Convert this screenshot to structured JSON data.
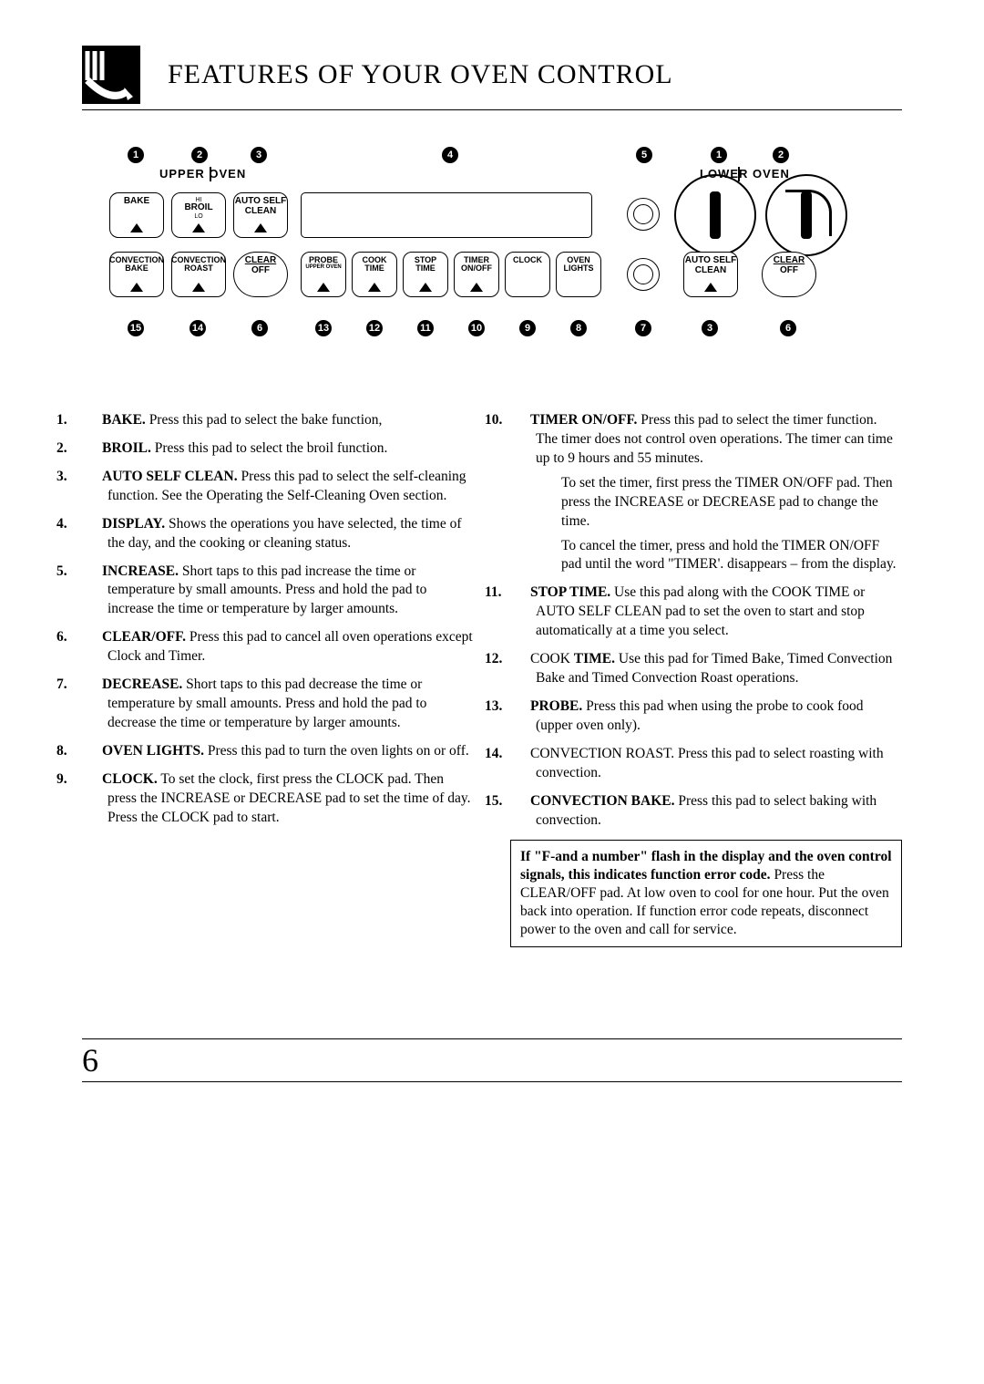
{
  "title": "FEATURES OF YOUR OVEN CONTROL",
  "page_number": "6",
  "section_labels": {
    "upper": "UPPER OVEN",
    "lower": "LOWER OVEN"
  },
  "buttons": {
    "bake": "BAKE",
    "broil": "BROIL",
    "broil_hi": "HI",
    "broil_lo": "LO",
    "auto_clean1": "AUTO SELF",
    "auto_clean2": "CLEAN",
    "conv_bake1": "CONVECTION",
    "conv_bake2": "BAKE",
    "conv_roast1": "CONVECTION",
    "conv_roast2": "ROAST",
    "clear1": "CLEAR",
    "clear2": "OFF",
    "probe1": "PROBE",
    "probe2": "UPPER OVEN",
    "cook_time1": "COOK",
    "cook_time2": "TIME",
    "stop_time1": "STOP",
    "stop_time2": "TIME",
    "timer1": "TIMER",
    "timer2": "ON/OFF",
    "clock": "CLOCK",
    "lights1": "OVEN",
    "lights2": "LIGHTS",
    "lower_clean1": "AUTO SELF",
    "lower_clean2": "CLEAN",
    "lower_clear1": "CLEAR",
    "lower_clear2": "OFF"
  },
  "callouts_top": [
    "1",
    "2",
    "3",
    "4",
    "5",
    "1",
    "2"
  ],
  "callouts_bottom": [
    "15",
    "14",
    "6",
    "13",
    "12",
    "11",
    "10",
    "9",
    "8",
    "7",
    "3",
    "6"
  ],
  "features_left": [
    {
      "n": "1.",
      "b": "BAKE.",
      "t": " Press this pad to select the bake function,"
    },
    {
      "n": "2.",
      "b": "BROIL.",
      "t": " Press this pad to select the broil function."
    },
    {
      "n": "3.",
      "b": "AUTO SELF CLEAN.",
      "t": " Press this pad to select the self-cleaning function. See the Operating the Self-Cleaning Oven section."
    },
    {
      "n": "4.",
      "b": "DISPLAY.",
      "t": " Shows the operations you have selected, the time of the day, and the cooking or cleaning status."
    },
    {
      "n": "5.",
      "b": "INCREASE.",
      "t": " Short taps to this pad increase the time or temperature by small amounts. Press and hold the pad to increase the time or temperature by larger amounts."
    },
    {
      "n": "6.",
      "b": "CLEAR/OFF.",
      "t": " Press this pad to cancel all oven operations except Clock and Timer."
    },
    {
      "n": "7.",
      "b": "DECREASE.",
      "t": " Short taps to this pad decrease the time or temperature by small amounts. Press and hold the pad to decrease the time or temperature by larger amounts."
    },
    {
      "n": "8.",
      "b": "OVEN LIGHTS.",
      "t": " Press this pad to turn the oven lights on or off."
    },
    {
      "n": "9.",
      "b": "CLOCK.",
      "t": " To set the clock, first press the CLOCK pad. Then press the INCREASE or DECREASE pad to set the time of day. Press the CLOCK pad to start."
    }
  ],
  "features_right": [
    {
      "n": "10.",
      "b": "TIMER ON/OFF.",
      "t": " Press this pad to select the timer function. The timer does not control oven operations. The timer can time up to 9 hours and 55 minutes.",
      "extra": [
        "To set the timer, first press the TIMER ON/OFF pad. Then press the INCREASE or DECREASE pad to change the time.",
        "To cancel the timer, press and hold the TIMER ON/OFF pad until the word \"TIMER'. disappears  – from the display."
      ]
    },
    {
      "n": "11.",
      "b": "STOP TIME.",
      "t": " Use this pad along with the COOK TIME or AUTO SELF CLEAN pad to set the oven to start and stop automatically at a time you select."
    },
    {
      "n": "12.",
      "b": "",
      "t": "COOK ",
      "b2": "TIME.",
      "t2": " Use this pad for Timed Bake, Timed Convection Bake and Timed Convection Roast operations."
    },
    {
      "n": "13.",
      "b": "PROBE.",
      "t": " Press this pad when using the probe to cook food (upper oven only)."
    },
    {
      "n": "14.",
      "b": "",
      "t": "CONVECTION ROAST. Press this pad to select roasting with convection."
    },
    {
      "n": "15.",
      "b": "CONVECTION BAKE.",
      "t": " Press this pad to select baking with convection."
    }
  ],
  "note": {
    "bold": "If \"F-and a number\" flash in the display and the oven control signals, this indicates function error code.",
    "rest": " Press the CLEAR/OFF pad. At low oven to cool for one hour. Put the oven back into operation. If function error code repeats, disconnect power to the oven and call for service."
  }
}
